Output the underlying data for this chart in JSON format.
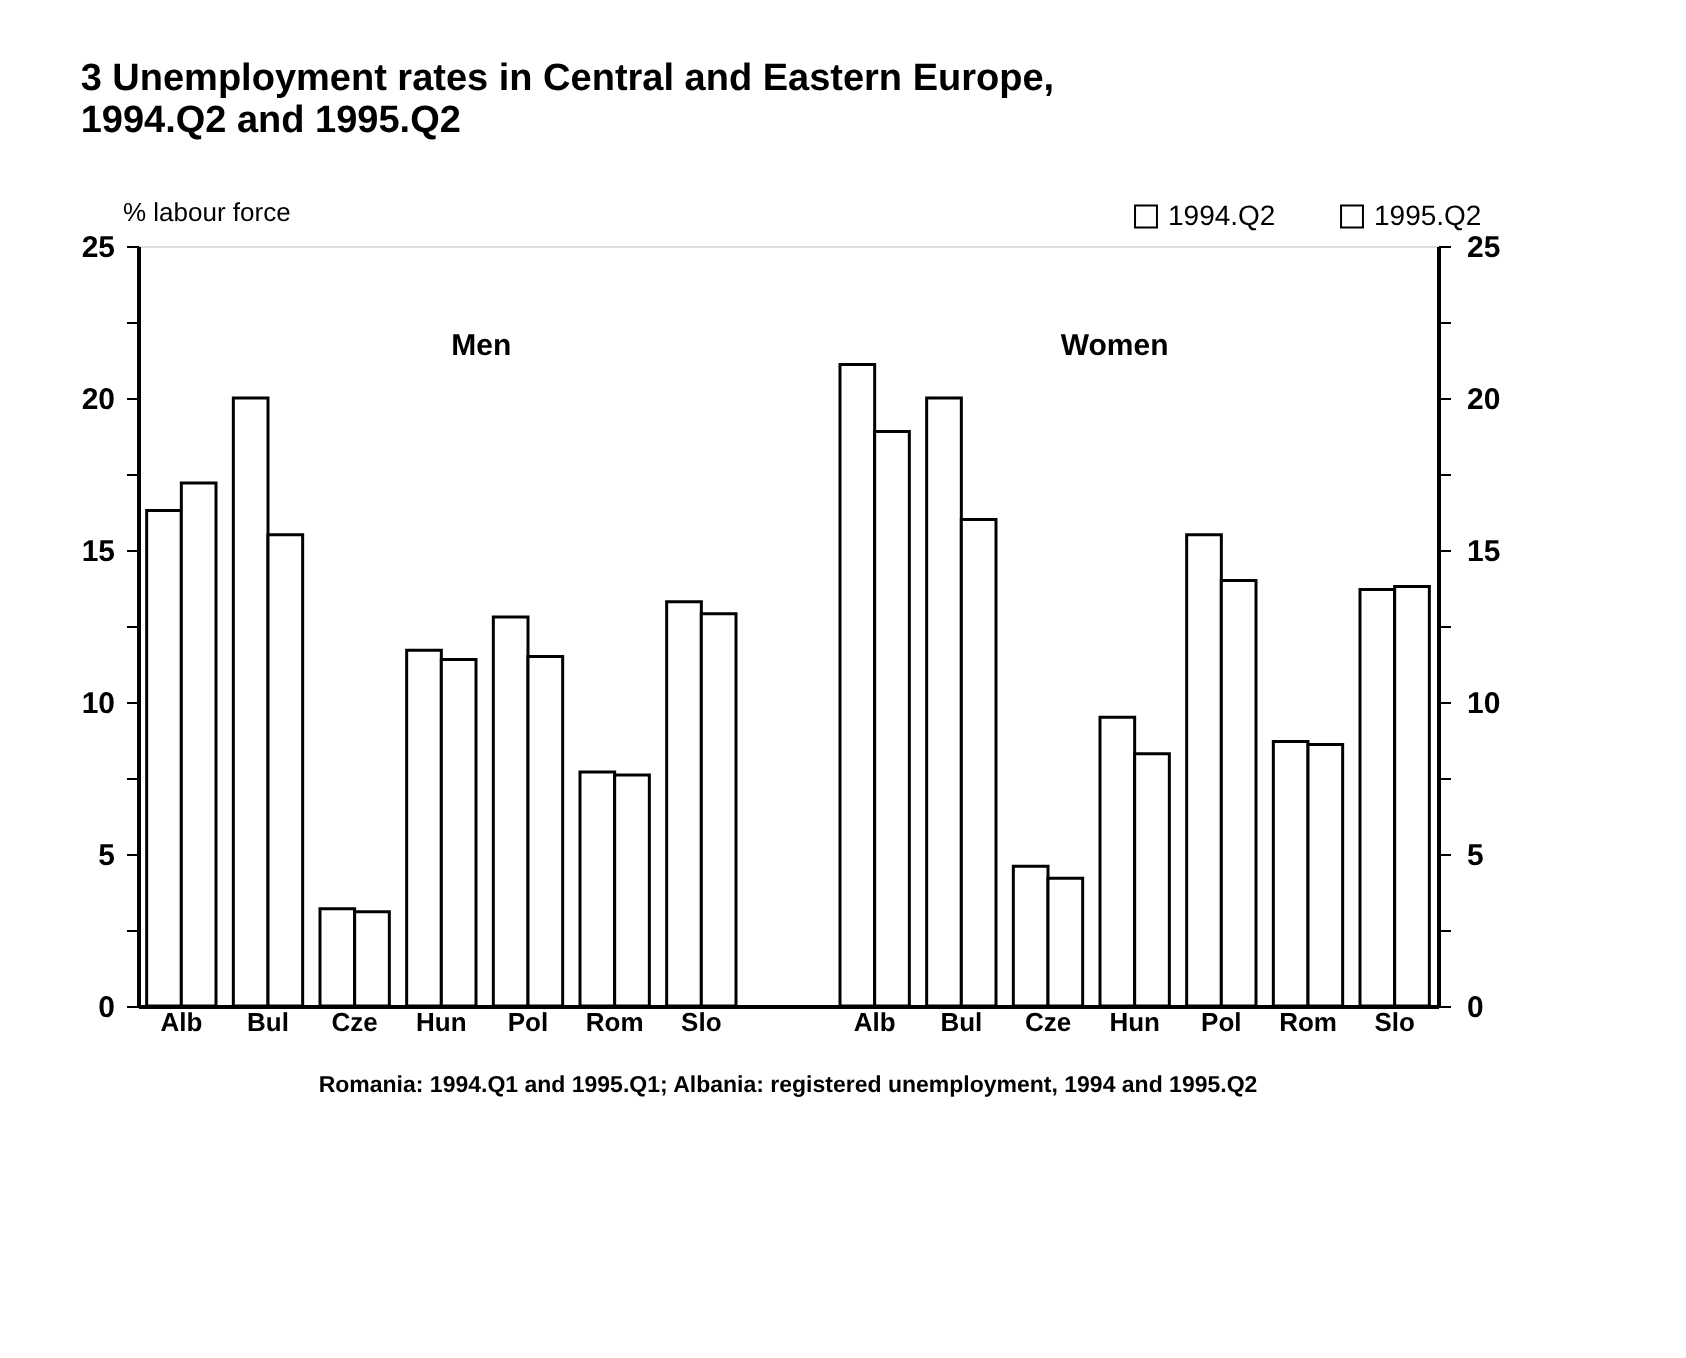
{
  "chart_data": {
    "type": "bar",
    "title": "3   Unemployment rates in Central and Eastern Europe,\n     1994.Q2 and 1995.Q2",
    "ylabel": "% labour force",
    "categories": [
      "Alb",
      "Bul",
      "Cze",
      "Hun",
      "Pol",
      "Rom",
      "Slo",
      null,
      "Alb",
      "Bul",
      "Cze",
      "Hun",
      "Pol",
      "Rom",
      "Slo"
    ],
    "series": [
      {
        "name": "1994.Q2",
        "color": "#ffffff",
        "values": [
          16.3,
          20.0,
          3.2,
          11.7,
          12.8,
          7.7,
          13.3,
          null,
          21.1,
          20.0,
          4.6,
          9.5,
          15.5,
          8.7,
          13.7
        ]
      },
      {
        "name": "1995.Q2",
        "color": "#ffffff",
        "values": [
          17.2,
          15.5,
          3.1,
          11.4,
          11.5,
          7.6,
          12.9,
          null,
          18.9,
          16.0,
          4.2,
          8.3,
          14.0,
          8.6,
          13.8
        ]
      }
    ],
    "ylim": [
      0,
      25
    ],
    "yticks": [
      0,
      {
        "value": 2.5,
        "label": null
      },
      5,
      {
        "value": 7.5,
        "label": null
      },
      10,
      {
        "value": 12.5,
        "label": null
      },
      15,
      {
        "value": 17.5,
        "label": null
      },
      20,
      {
        "value": 22.5,
        "label": null
      },
      25
    ],
    "y2lim": [
      0,
      25
    ],
    "y2ticks": [
      0,
      {
        "value": 2.5,
        "label": null
      },
      5,
      {
        "value": 7.5,
        "label": null
      },
      10,
      {
        "value": 12.5,
        "label": null
      },
      15,
      {
        "value": 17.5,
        "label": null
      },
      20,
      {
        "value": 22.5,
        "label": null
      },
      25
    ],
    "legend": "top right",
    "grid": false,
    "annotations": [
      "Men",
      "Women",
      "Romania: 1994.Q1 and 1995.Q1; Albania: registered unemployment, 1994 and 1995.Q2"
    ]
  }
}
